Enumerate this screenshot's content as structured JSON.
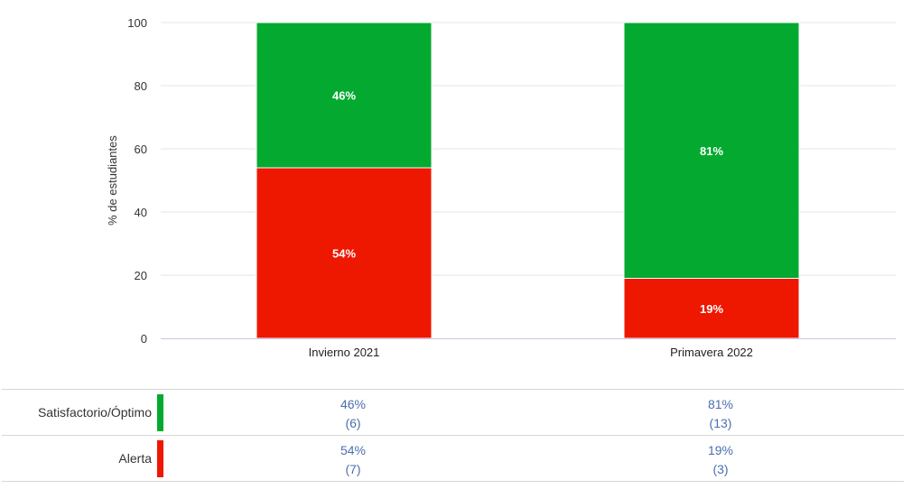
{
  "chart_data": {
    "type": "bar",
    "stacked": true,
    "ylabel": "% de estudiantes",
    "ylim": [
      0,
      100
    ],
    "yticks": [
      0,
      20,
      40,
      60,
      80,
      100
    ],
    "grid": true,
    "categories": [
      "Invierno 2021",
      "Primavera 2022"
    ],
    "series": [
      {
        "name": "Alerta",
        "color": "#ee1700",
        "values": [
          54,
          19
        ],
        "labels": [
          "54%",
          "19%"
        ],
        "counts": [
          "(7)",
          "(3)"
        ]
      },
      {
        "name": "Satisfactorio/Óptimo",
        "color": "#03aa2f",
        "values": [
          46,
          81
        ],
        "labels": [
          "46%",
          "81%"
        ],
        "counts": [
          "(6)",
          "(13)"
        ]
      }
    ]
  },
  "table": {
    "rows": [
      {
        "label": "Satisfactorio/Óptimo",
        "color": "#03aa2f",
        "cells": [
          {
            "pct": "46%",
            "count": "(6)"
          },
          {
            "pct": "81%",
            "count": "(13)"
          }
        ]
      },
      {
        "label": "Alerta",
        "color": "#ee1700",
        "cells": [
          {
            "pct": "54%",
            "count": "(7)"
          },
          {
            "pct": "19%",
            "count": "(3)"
          }
        ]
      }
    ]
  }
}
